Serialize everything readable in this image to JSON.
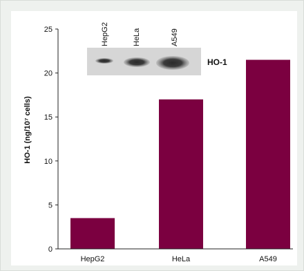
{
  "chart_data": {
    "type": "bar",
    "ylabel": "HO-1 (ng/10⁷ cells)",
    "ylim": [
      0,
      25
    ],
    "yticks": [
      0,
      5,
      10,
      15,
      20,
      25
    ],
    "categories": [
      "HepG2",
      "HeLa",
      "A549"
    ],
    "values": [
      3.5,
      17.0,
      21.5
    ],
    "bar_color": "#7b0040",
    "grid": false,
    "inset_blot": {
      "lane_labels": [
        "HepG2",
        "HeLa",
        "A549"
      ],
      "band_label": "HO-1"
    }
  }
}
